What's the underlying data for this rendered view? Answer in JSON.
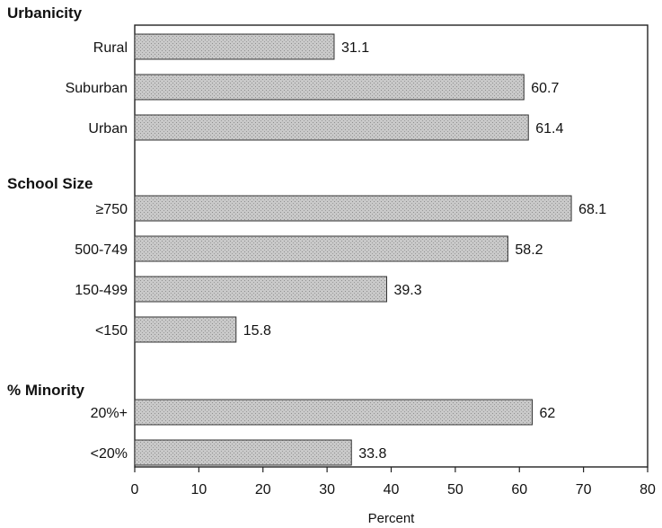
{
  "chart_data": {
    "type": "bar",
    "orientation": "horizontal",
    "title": "",
    "xlabel": "Percent",
    "ylabel": "",
    "xlim": [
      0,
      80
    ],
    "x_ticks": [
      0,
      10,
      20,
      30,
      40,
      50,
      60,
      70,
      80
    ],
    "grid": false,
    "legend": "none",
    "colors": {
      "bar_fill": "#c8c8c8",
      "bar_stroke": "#333333",
      "axis": "#222222",
      "text": "#111111"
    },
    "groups": [
      {
        "heading": "Urbanicity",
        "categories": [
          "Rural",
          "Suburban",
          "Urban"
        ],
        "values": [
          31.1,
          60.7,
          61.4
        ],
        "value_labels": [
          "31.1",
          "60.7",
          "61.4"
        ]
      },
      {
        "heading": "School Size",
        "categories": [
          "≥750",
          "500-749",
          "150-499",
          "<150"
        ],
        "values": [
          68.1,
          58.2,
          39.3,
          15.8
        ],
        "value_labels": [
          "68.1",
          "58.2",
          "39.3",
          "15.8"
        ]
      },
      {
        "heading": "% Minority",
        "categories": [
          "20%+",
          "<20%"
        ],
        "values": [
          62,
          33.8
        ],
        "value_labels": [
          "62",
          "33.8"
        ]
      }
    ]
  }
}
